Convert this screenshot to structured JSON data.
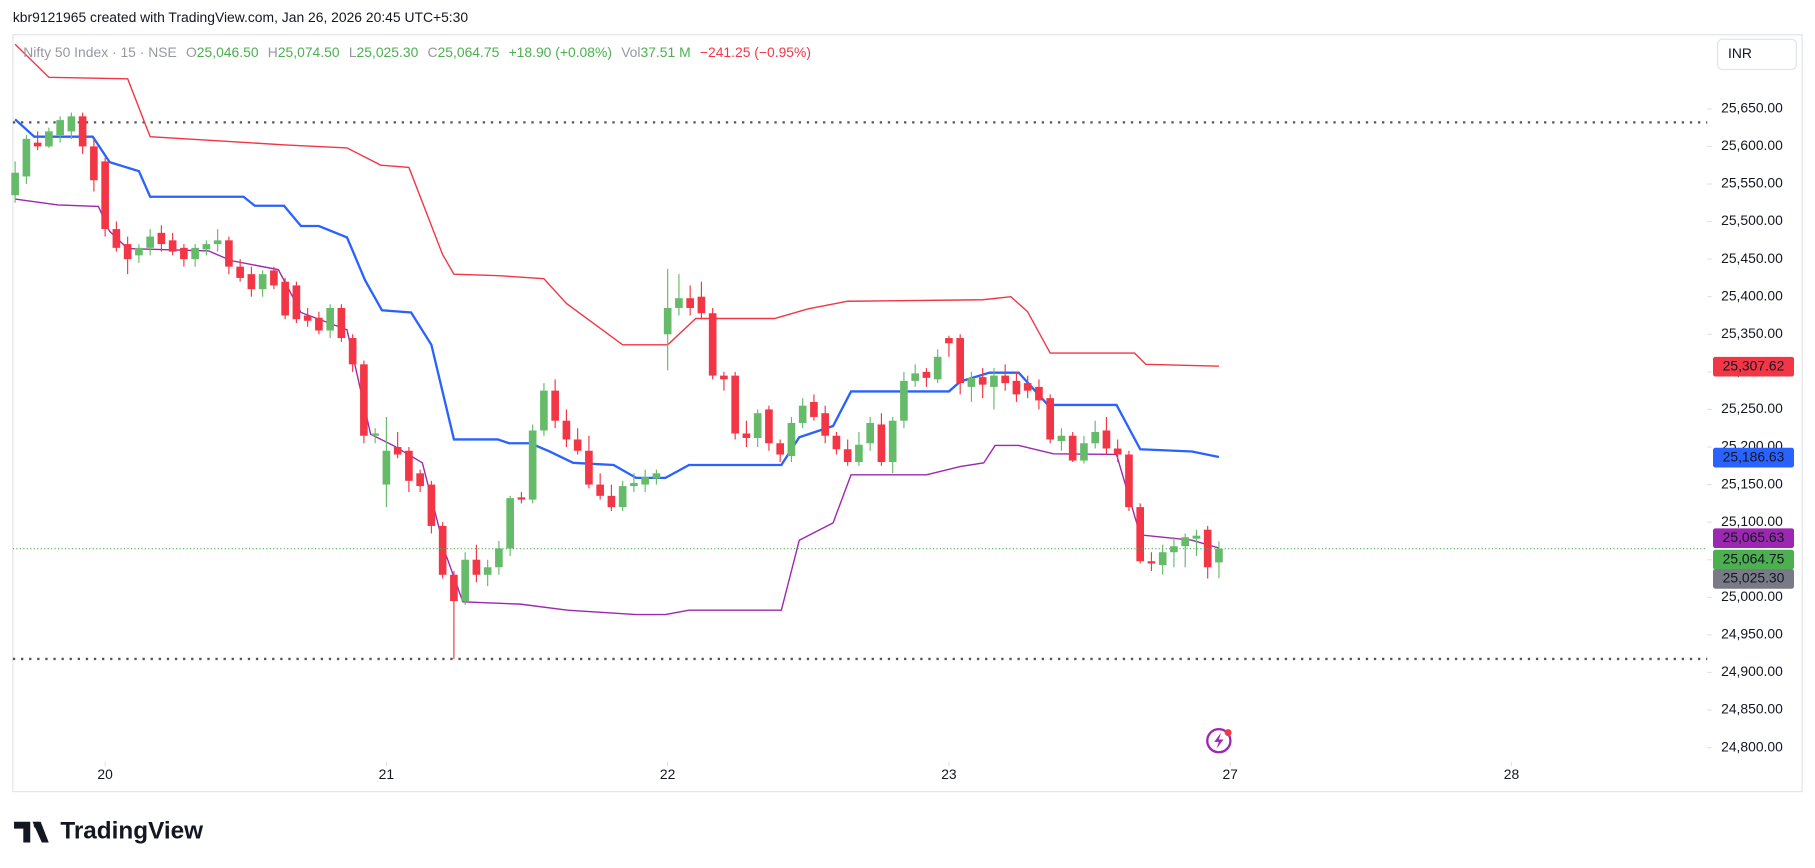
{
  "header": {
    "credit": "kbr9121965 created with TradingView.com, Jan 26, 2026 20:45 UTC+5:30",
    "currency": "INR",
    "brand": "TradingView"
  },
  "chart_data": {
    "type": "candlestick",
    "legend": {
      "symbol": "Nifty 50 Index · 15 · NSE",
      "items": [
        {
          "key": "O",
          "value": "25,046.50"
        },
        {
          "key": "H",
          "value": "25,074.50"
        },
        {
          "key": "L",
          "value": "25,025.30"
        },
        {
          "key": "C",
          "value": "25,064.75"
        }
      ],
      "change": "+18.90 (+0.08%)",
      "volume_key": "Vol",
      "volume": "37.51 M",
      "day_change": "−241.25 (−0.95%)"
    },
    "up_color": "#66bb6a",
    "down_color": "#f23645",
    "open": [
      25535,
      25560,
      25605,
      25600,
      25615,
      25620,
      25640,
      25600,
      25580,
      25490,
      25470,
      25455,
      25465,
      25485,
      25475,
      25465,
      25450,
      25463,
      25470,
      25475,
      25440,
      25430,
      25410,
      25435,
      25420,
      25415,
      25375,
      25372,
      25355,
      25385,
      25345,
      25310,
      25215,
      25150,
      25200,
      25195,
      25165,
      25150,
      25095,
      25030,
      24995,
      25050,
      25030,
      25040,
      25065,
      25133,
      25130,
      25222,
      25275,
      25235,
      25210,
      25195,
      25150,
      25135,
      25120,
      25148,
      25150,
      25158,
      25350,
      25385,
      25398,
      25400,
      25378,
      25295,
      25295,
      25218,
      25212,
      25250,
      25205,
      25188,
      25232,
      25260,
      25245,
      25215,
      25197,
      25180,
      25205,
      25230,
      25180,
      25235,
      25288,
      25300,
      25290,
      25345,
      25345,
      25280,
      25293,
      25280,
      25295,
      25288,
      25285,
      25280,
      25265,
      25208,
      25215,
      25182,
      25205,
      25222,
      25198,
      25190,
      25120,
      25048,
      25043,
      25060,
      25068,
      25078,
      25090,
      25046.5
    ],
    "high": [
      25580,
      25615,
      25620,
      25625,
      25640,
      25645,
      25645,
      25610,
      25585,
      25500,
      25480,
      25470,
      25490,
      25495,
      25485,
      25470,
      25470,
      25475,
      25490,
      25480,
      25450,
      25440,
      25435,
      25440,
      25425,
      25420,
      25385,
      25380,
      25390,
      25390,
      25350,
      25315,
      25225,
      25240,
      25220,
      25200,
      25170,
      25155,
      25100,
      25035,
      25060,
      25070,
      25050,
      25075,
      25135,
      25140,
      25230,
      25285,
      25290,
      25250,
      25225,
      25215,
      25165,
      25150,
      25155,
      25165,
      25170,
      25170,
      25437,
      25430,
      25415,
      25420,
      25385,
      25300,
      25300,
      25235,
      25250,
      25255,
      25210,
      25240,
      25265,
      25270,
      25255,
      25220,
      25210,
      25220,
      25240,
      25245,
      25240,
      25300,
      25310,
      25305,
      25330,
      25348,
      25350,
      25300,
      25305,
      25305,
      25310,
      25300,
      25295,
      25290,
      25270,
      25225,
      25220,
      25215,
      25235,
      25240,
      25210,
      25195,
      25125,
      25060,
      25070,
      25080,
      25085,
      25090,
      25095,
      25074.5
    ],
    "low": [
      25525,
      25550,
      25595,
      25598,
      25605,
      25610,
      25590,
      25540,
      25480,
      25460,
      25430,
      25445,
      25455,
      25460,
      25455,
      25440,
      25440,
      25455,
      25460,
      25430,
      25420,
      25400,
      25400,
      25410,
      25370,
      25365,
      25360,
      25350,
      25345,
      25340,
      25300,
      25205,
      25205,
      25120,
      25185,
      25140,
      25140,
      25085,
      25025,
      24918,
      24990,
      25020,
      25015,
      25030,
      25055,
      25125,
      25125,
      25215,
      25225,
      25200,
      25190,
      25145,
      25130,
      25115,
      25115,
      25140,
      25140,
      25150,
      25302,
      25375,
      25375,
      25370,
      25290,
      25275,
      25210,
      25200,
      25200,
      25195,
      25180,
      25180,
      25225,
      25235,
      25205,
      25190,
      25175,
      25175,
      25195,
      25175,
      25165,
      25225,
      25280,
      25280,
      25285,
      25320,
      25270,
      25260,
      25265,
      25250,
      25275,
      25260,
      25265,
      25250,
      25205,
      25195,
      25180,
      25178,
      25198,
      25190,
      25180,
      25115,
      25045,
      25035,
      25030,
      25040,
      25040,
      25055,
      25025,
      25025.3
    ],
    "close": [
      25565,
      25610,
      25600,
      25620,
      25635,
      25640,
      25600,
      25555,
      25490,
      25465,
      25450,
      25465,
      25480,
      25470,
      25460,
      25450,
      25465,
      25470,
      25475,
      25440,
      25425,
      25410,
      25430,
      25415,
      25375,
      25370,
      25368,
      25355,
      25385,
      25345,
      25310,
      25215,
      25218,
      25195,
      25190,
      25155,
      25148,
      25095,
      25030,
      24995,
      25050,
      25030,
      25040,
      25065,
      25132,
      25130,
      25222,
      25275,
      25235,
      25210,
      25195,
      25150,
      25135,
      25120,
      25148,
      25152,
      25160,
      25165,
      25385,
      25398,
      25385,
      25378,
      25295,
      25290,
      25218,
      25212,
      25245,
      25205,
      25190,
      25232,
      25255,
      25240,
      25215,
      25197,
      25180,
      25203,
      25232,
      25180,
      25235,
      25288,
      25298,
      25292,
      25320,
      25338,
      25285,
      25292,
      25283,
      25295,
      25285,
      25270,
      25275,
      25262,
      25210,
      25215,
      25182,
      25205,
      25220,
      25198,
      25190,
      25120,
      25048,
      25045,
      25060,
      25068,
      25080,
      25082,
      25040,
      25064.75
    ],
    "lines": [
      {
        "color": "#f23645",
        "x": [
          0,
          3,
          10,
          12,
          24,
          29.5,
          32.5,
          35,
          38,
          39,
          43,
          47,
          49,
          54,
          58,
          60.5,
          67.5,
          70.5,
          74,
          86,
          88.5,
          90,
          92,
          99.5,
          100.5,
          107
        ],
        "values": [
          25736,
          25692,
          25690,
          25613,
          25602,
          25598,
          25575,
          25572,
          25456,
          25430,
          25428,
          25424,
          25391,
          25336,
          25336,
          25371,
          25371,
          25384,
          25394,
          25396,
          25400,
          25380,
          25325,
          25325,
          25310,
          25307.62
        ]
      },
      {
        "color": "#2962ff",
        "x": [
          0,
          1.7,
          6.9,
          8.4,
          11,
          12,
          20.3,
          21.3,
          23.9,
          25.4,
          27,
          29.5,
          31.1,
          32.6,
          35.2,
          37,
          39,
          42.9,
          43.9,
          45.8,
          47.5,
          49.6,
          53.2,
          55.2,
          57.8,
          59.9,
          68.1,
          69.7,
          72.7,
          74.3,
          83,
          84,
          86.6,
          89.2,
          91.8,
          97.9,
          100,
          104.6,
          107
        ],
        "values": [
          25636,
          25613,
          25613,
          25579,
          25567,
          25533,
          25533,
          25521,
          25521,
          25494,
          25494,
          25479,
          25422,
          25382,
          25379,
          25336,
          25210,
          25210,
          25205,
          25205,
          25194,
          25179,
          25176,
          25159,
          25159,
          25176,
          25176,
          25213,
          25228,
          25274,
          25274,
          25287,
          25299,
          25299,
          25256,
          25256,
          25197,
          25194,
          25186.63
        ]
      },
      {
        "color": "#9c27b0",
        "x": [
          0,
          3.8,
          7.4,
          8.4,
          10,
          17.2,
          19.2,
          23.4,
          25.4,
          29.5,
          31.6,
          33.6,
          36.2,
          38.3,
          39.8,
          44.9,
          49.1,
          55.2,
          57.8,
          59.9,
          68.1,
          69.7,
          72.7,
          74.3,
          81,
          84,
          86.1,
          87.1,
          89.2,
          92.3,
          97.9,
          100,
          104.6,
          107
        ],
        "values": [
          25530,
          25522,
          25520,
          25487,
          25464,
          25461,
          25448,
          25436,
          25379,
          25356,
          25217,
          25202,
          25179,
          25056,
          24994,
          24991,
          24983,
          24977,
          24977,
          24983,
          24983,
          25076,
          25099,
          25163,
          25163,
          25174,
          25179,
          25202,
          25202,
          25191,
          25190,
          25083,
          25076,
          25065.63
        ]
      }
    ],
    "levels": [
      25632,
      24918
    ],
    "price_labels": [
      {
        "value": 25307.62,
        "label": "25,307.62",
        "color": "#f23645"
      },
      {
        "value": 25186.63,
        "label": "25,186.63",
        "color": "#2962ff"
      },
      {
        "value": 25065.63,
        "label": "25,065.63",
        "color": "#9c27b0"
      },
      {
        "value": 25064.75,
        "label": "25,064.75",
        "color": "#4caf50"
      },
      {
        "value": 25025.3,
        "label": "25,025.30",
        "color": "#787b86"
      }
    ],
    "xlim": [
      -0.2,
      150.4
    ],
    "xticks": [
      {
        "value": 8,
        "label": "20"
      },
      {
        "value": 33,
        "label": "21"
      },
      {
        "value": 58,
        "label": "22"
      },
      {
        "value": 83,
        "label": "23"
      },
      {
        "value": 108,
        "label": "27"
      },
      {
        "value": 133,
        "label": "28"
      }
    ],
    "ylim": [
      24781.5,
      25748.6
    ],
    "yticks": [
      {
        "value": 24800,
        "label": "24,800.00"
      },
      {
        "value": 24850,
        "label": "24,850.00"
      },
      {
        "value": 24900,
        "label": "24,900.00"
      },
      {
        "value": 24950,
        "label": "24,950.00"
      },
      {
        "value": 25000,
        "label": "25,000.00"
      },
      {
        "value": 25050,
        "label": "25,050.00"
      },
      {
        "value": 25100,
        "label": "25,100.00"
      },
      {
        "value": 25150,
        "label": "25,150.00"
      },
      {
        "value": 25200,
        "label": "25,200.00"
      },
      {
        "value": 25250,
        "label": "25,250.00"
      },
      {
        "value": 25300,
        "label": "25,300.00"
      },
      {
        "value": 25350,
        "label": "25,350.00"
      },
      {
        "value": 25400,
        "label": "25,400.00"
      },
      {
        "value": 25450,
        "label": "25,450.00"
      },
      {
        "value": 25500,
        "label": "25,500.00"
      },
      {
        "value": 25550,
        "label": "25,550.00"
      },
      {
        "value": 25600,
        "label": "25,600.00"
      },
      {
        "value": 25650,
        "label": "25,650.00"
      }
    ]
  }
}
